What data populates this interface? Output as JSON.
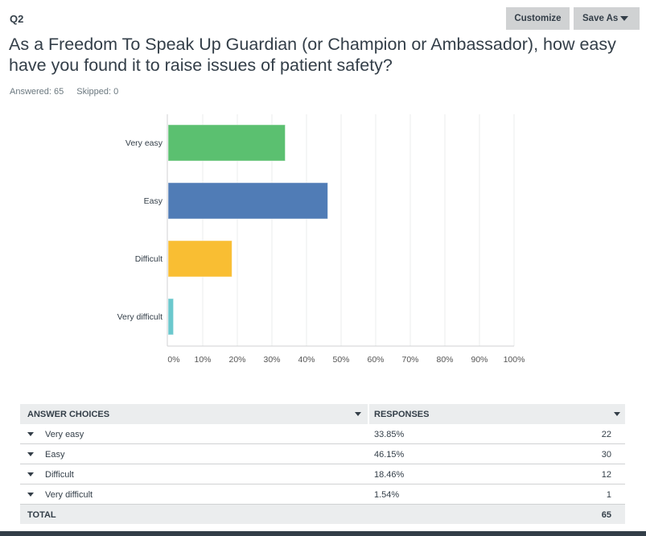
{
  "question": {
    "number": "Q2",
    "text": "As a Freedom To Speak Up Guardian (or Champion or Ambassador), how easy have you found it to raise issues of patient safety?",
    "answered": "Answered: 65",
    "skipped": "Skipped: 0"
  },
  "toolbar": {
    "customize_label": "Customize",
    "save_as_label": "Save As",
    "save_as_icon": "caret-down-icon"
  },
  "chart_data": {
    "type": "bar",
    "orientation": "horizontal",
    "categories": [
      "Very easy",
      "Easy",
      "Difficult",
      "Very difficult"
    ],
    "values": [
      33.85,
      46.15,
      18.46,
      1.54
    ],
    "colors": [
      "#5bc070",
      "#507cb6",
      "#f9be33",
      "#6bc8cd"
    ],
    "xlim": [
      0,
      100
    ],
    "xticks": [
      "0%",
      "10%",
      "20%",
      "30%",
      "40%",
      "50%",
      "60%",
      "70%",
      "80%",
      "90%",
      "100%"
    ],
    "grid": true
  },
  "table": {
    "headers": [
      "ANSWER CHOICES",
      "RESPONSES"
    ],
    "rows": [
      {
        "choice": "Very easy",
        "percent": "33.85%",
        "count": "22"
      },
      {
        "choice": "Easy",
        "percent": "46.15%",
        "count": "30"
      },
      {
        "choice": "Difficult",
        "percent": "18.46%",
        "count": "12"
      },
      {
        "choice": "Very difficult",
        "percent": "1.54%",
        "count": "1"
      }
    ],
    "total_label": "TOTAL",
    "total_value": "65"
  }
}
